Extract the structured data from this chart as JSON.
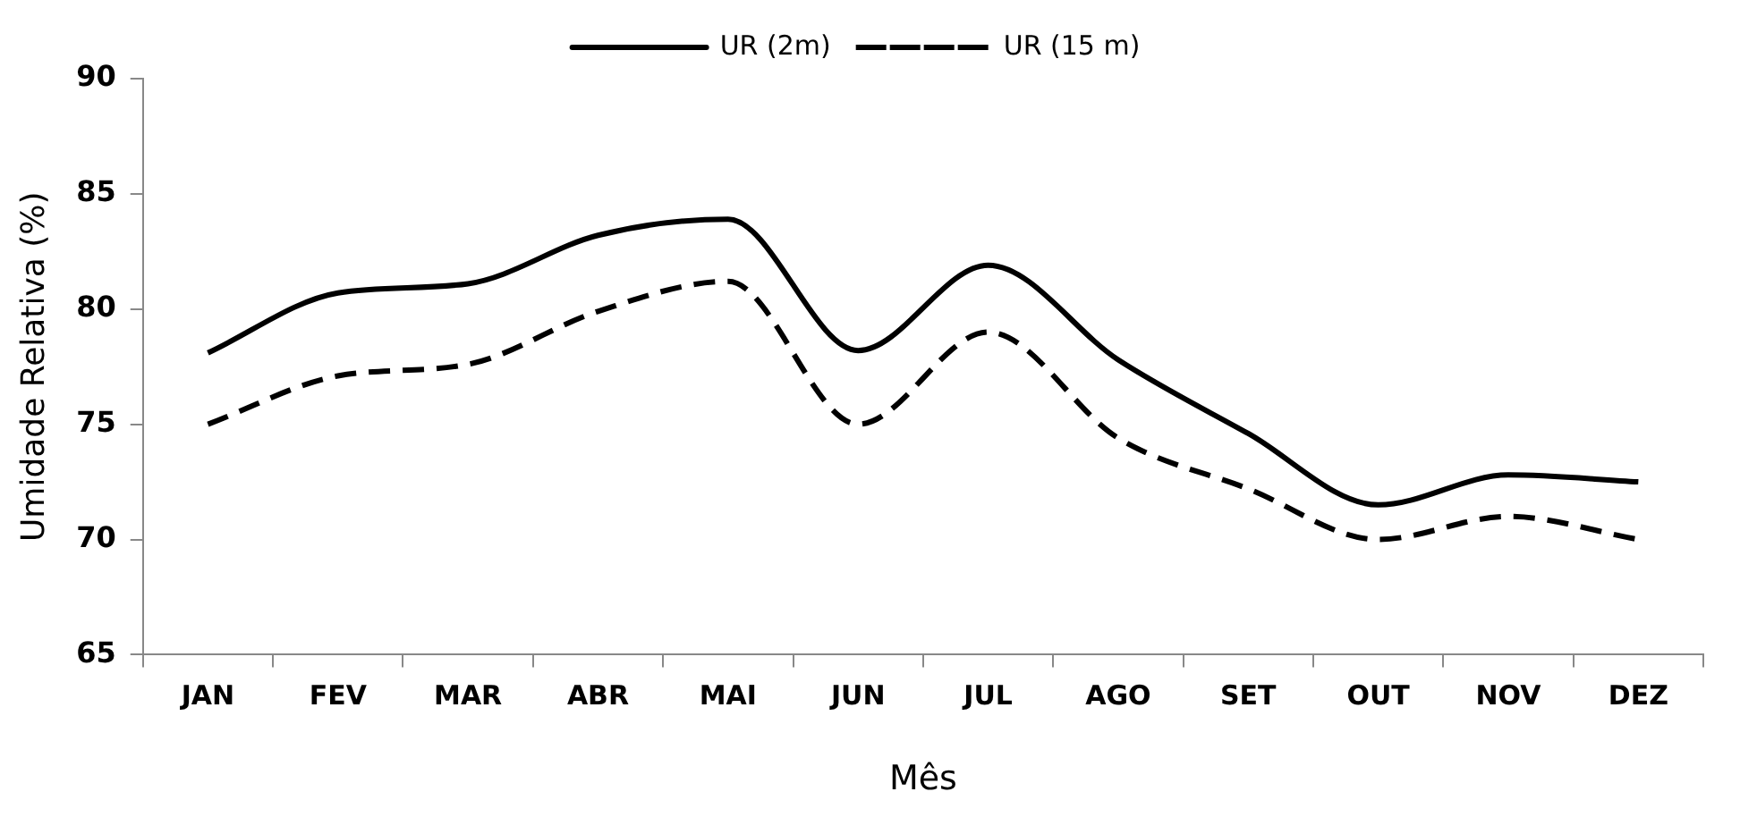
{
  "chart_data": {
    "type": "line",
    "xlabel": "Mês",
    "ylabel": "Umidade Relativa (%)",
    "categories": [
      "JAN",
      "FEV",
      "MAR",
      "ABR",
      "MAI",
      "JUN",
      "JUL",
      "AGO",
      "SET",
      "OUT",
      "NOV",
      "DEZ"
    ],
    "series": [
      {
        "name": "UR (2m)",
        "color": "#000000",
        "line_style": "solid",
        "values": [
          78.1,
          80.7,
          81.1,
          83.2,
          83.9,
          78.2,
          81.9,
          77.8,
          74.6,
          71.5,
          72.8,
          72.5
        ]
      },
      {
        "name": "UR (15 m)",
        "color": "#000000",
        "line_style": "dashed",
        "values": [
          75,
          77.1,
          77.6,
          79.9,
          81.2,
          75,
          79,
          74.4,
          72.2,
          70,
          71,
          70
        ]
      }
    ],
    "ylim": [
      65,
      90
    ],
    "yticks": [
      65,
      70,
      75,
      80,
      85,
      90
    ],
    "grid": false,
    "legend": "top",
    "marker": "none"
  }
}
